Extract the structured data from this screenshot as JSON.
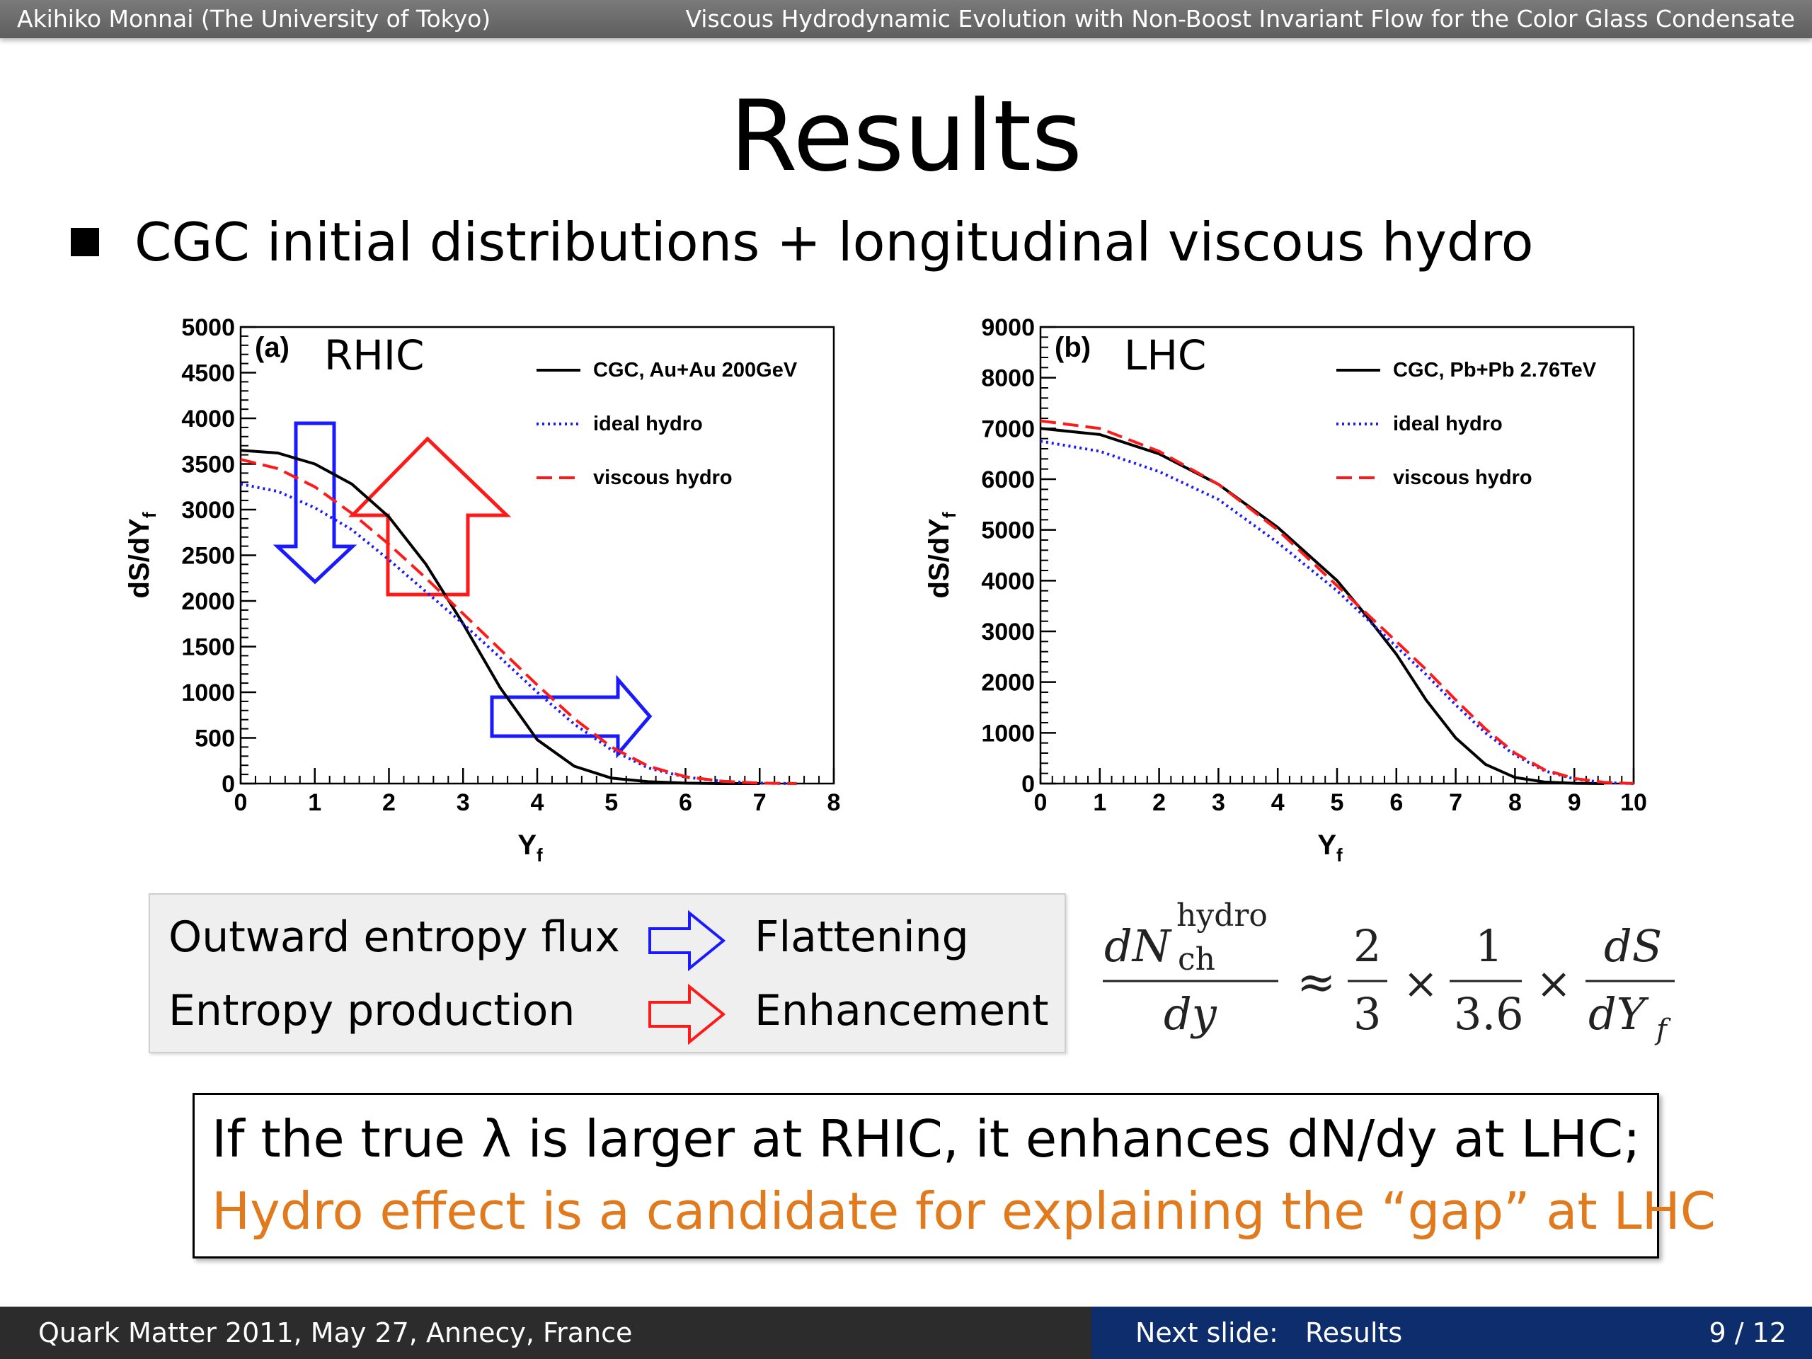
{
  "header": {
    "author": "Akihiko Monnai (The University of Tokyo)",
    "talk_title": "Viscous Hydrodynamic Evolution with Non-Boost Invariant Flow for the Color Glass Condensate"
  },
  "slide": {
    "title": "Results",
    "bullet": "CGC initial distributions + longitudinal viscous hydro"
  },
  "colors": {
    "cgc": "#000000",
    "ideal": "#1a1aff",
    "viscous": "#ff1a1a",
    "conclusion_highlight": "#e07a1c",
    "footer_left": "#2c2c2c",
    "footer_right": "#0d2d6c"
  },
  "chart_data": [
    {
      "type": "line",
      "panel_label": "(a)",
      "panel_name": "RHIC",
      "xlabel_main": "Y",
      "xlabel_sub": "f",
      "ylabel_main": "dS/dY",
      "ylabel_sub": "f",
      "xlim": [
        0,
        8
      ],
      "ylim": [
        0,
        5000
      ],
      "xticks": [
        "0",
        "1",
        "2",
        "3",
        "4",
        "5",
        "6",
        "7",
        "8"
      ],
      "yticks": [
        "0",
        "500",
        "1000",
        "1500",
        "2000",
        "2500",
        "3000",
        "3500",
        "4000",
        "4500",
        "5000"
      ],
      "legend_position": "top-right",
      "series": [
        {
          "name": "CGC, Au+Au 200GeV",
          "style": "solid",
          "x": [
            0,
            0.5,
            1,
            1.5,
            2,
            2.5,
            3,
            3.5,
            4,
            4.5,
            5,
            5.5,
            6,
            6.5,
            7
          ],
          "y": [
            3650,
            3620,
            3500,
            3280,
            2920,
            2400,
            1750,
            1050,
            480,
            190,
            60,
            20,
            5,
            0,
            0
          ]
        },
        {
          "name": "ideal hydro",
          "style": "dotted",
          "x": [
            0,
            0.5,
            1,
            1.5,
            2,
            2.5,
            3,
            3.5,
            4,
            4.5,
            5,
            5.5,
            6,
            6.5,
            7,
            7.5
          ],
          "y": [
            3280,
            3200,
            3020,
            2780,
            2450,
            2100,
            1750,
            1380,
            1000,
            650,
            370,
            170,
            70,
            25,
            5,
            0
          ]
        },
        {
          "name": "viscous hydro",
          "style": "dashed",
          "x": [
            0,
            0.5,
            1,
            1.5,
            2,
            2.5,
            3,
            3.5,
            4,
            4.5,
            5,
            5.5,
            6,
            6.5,
            7,
            7.5
          ],
          "y": [
            3550,
            3450,
            3250,
            2960,
            2620,
            2250,
            1860,
            1470,
            1080,
            710,
            400,
            190,
            75,
            25,
            5,
            0
          ]
        }
      ]
    },
    {
      "type": "line",
      "panel_label": "(b)",
      "panel_name": "LHC",
      "xlabel_main": "Y",
      "xlabel_sub": "f",
      "ylabel_main": "dS/dY",
      "ylabel_sub": "f",
      "xlim": [
        0,
        10
      ],
      "ylim": [
        0,
        9000
      ],
      "xticks": [
        "0",
        "1",
        "2",
        "3",
        "4",
        "5",
        "6",
        "7",
        "8",
        "9",
        "10"
      ],
      "yticks": [
        "0",
        "1000",
        "2000",
        "3000",
        "4000",
        "5000",
        "6000",
        "7000",
        "8000",
        "9000"
      ],
      "legend_position": "top-right",
      "series": [
        {
          "name": "CGC, Pb+Pb 2.76TeV",
          "style": "solid",
          "x": [
            0,
            1,
            2,
            3,
            4,
            5,
            5.5,
            6,
            6.5,
            7,
            7.5,
            8,
            8.5,
            9,
            9.5
          ],
          "y": [
            7000,
            6880,
            6500,
            5900,
            5050,
            4000,
            3300,
            2550,
            1650,
            900,
            380,
            120,
            30,
            5,
            0
          ]
        },
        {
          "name": "ideal hydro",
          "style": "dotted",
          "x": [
            0,
            1,
            2,
            3,
            4,
            5,
            6,
            6.5,
            7,
            7.5,
            8,
            8.5,
            9,
            9.5,
            10
          ],
          "y": [
            6750,
            6550,
            6150,
            5600,
            4750,
            3800,
            2700,
            2150,
            1550,
            1000,
            560,
            250,
            90,
            20,
            0
          ]
        },
        {
          "name": "viscous hydro",
          "style": "dashed",
          "x": [
            0,
            1,
            2,
            3,
            4,
            5,
            6,
            6.5,
            7,
            7.5,
            8,
            8.5,
            9,
            9.5,
            10
          ],
          "y": [
            7150,
            7000,
            6550,
            5900,
            5000,
            3900,
            2800,
            2250,
            1650,
            1080,
            600,
            270,
            100,
            25,
            0
          ]
        }
      ]
    }
  ],
  "legend_box": {
    "row1_label": "Outward entropy flux",
    "row1_effect": "Flattening",
    "row2_label": "Entropy production",
    "row2_effect": "Enhancement"
  },
  "formula": {
    "lhs_num": "dN",
    "lhs_sup": "hydro",
    "lhs_sub": "ch",
    "lhs_den": "dy",
    "approx": "≈",
    "f1_num": "2",
    "f1_den": "3",
    "times": "×",
    "f2_num": "1",
    "f2_den": "3.6",
    "f3_num": "dS",
    "f3_den": "dY",
    "f3_den_sub": "f"
  },
  "conclusion": {
    "line1": "If the true λ is larger at RHIC, it enhances dN/dy at LHC;",
    "line2": "Hydro effect is a candidate for explaining the “gap” at LHC"
  },
  "footer": {
    "conference": "Quark Matter 2011, May 27, Annecy, France",
    "next_label": "Next slide:",
    "next_value": "Results",
    "page": "9 / 12"
  }
}
